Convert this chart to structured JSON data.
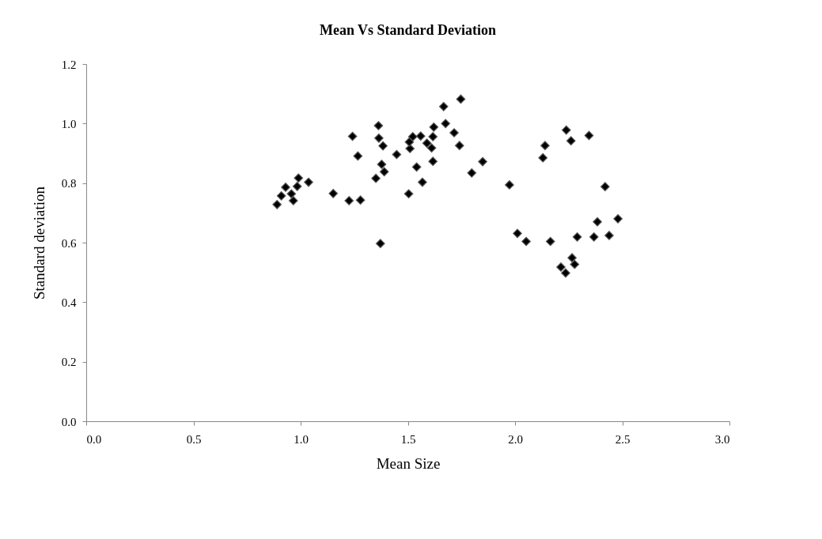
{
  "chart_data": {
    "type": "scatter",
    "title": "Mean Vs Standard Deviation",
    "xlabel": "Mean Size",
    "ylabel": "Standard deviation",
    "x": [
      0.89,
      0.91,
      0.93,
      0.957,
      0.966,
      0.984,
      0.99,
      1.037,
      1.152,
      1.226,
      1.279,
      1.242,
      1.267,
      1.363,
      1.365,
      1.384,
      1.378,
      1.39,
      1.351,
      1.372,
      1.448,
      1.504,
      1.541,
      1.568,
      1.51,
      1.507,
      1.523,
      1.56,
      1.589,
      1.611,
      1.617,
      1.621,
      1.617,
      1.676,
      1.716,
      1.741,
      1.667,
      1.747,
      1.849,
      1.798,
      1.974,
      2.011,
      2.052,
      2.165,
      2.13,
      2.14,
      2.239,
      2.261,
      2.345,
      2.42,
      2.29,
      2.368,
      2.439,
      2.384,
      2.48,
      2.266,
      2.278,
      2.214,
      2.236
    ],
    "series": [
      {
        "color": "#000000",
        "values": [
          0.728,
          0.757,
          0.786,
          0.764,
          0.741,
          0.789,
          0.817,
          0.803,
          0.765,
          0.741,
          0.743,
          0.957,
          0.891,
          0.993,
          0.951,
          0.925,
          0.863,
          0.838,
          0.816,
          0.597,
          0.896,
          0.764,
          0.854,
          0.803,
          0.916,
          0.938,
          0.956,
          0.958,
          0.934,
          0.918,
          0.956,
          0.988,
          0.873,
          1.0,
          0.969,
          0.926,
          1.057,
          1.082,
          0.872,
          0.834,
          0.794,
          0.631,
          0.604,
          0.604,
          0.885,
          0.926,
          0.978,
          0.942,
          0.96,
          0.788,
          0.619,
          0.619,
          0.624,
          0.67,
          0.68,
          0.549,
          0.527,
          0.518,
          0.498
        ]
      }
    ],
    "xlim": [
      0,
      3
    ],
    "xticks": [
      {
        "value": 0,
        "label": "0.0"
      },
      {
        "value": 0.5,
        "label": "0.5"
      },
      {
        "value": 1,
        "label": "1.0"
      },
      {
        "value": 1.5,
        "label": "1.5"
      },
      {
        "value": 2,
        "label": "2.0"
      },
      {
        "value": 2.5,
        "label": "2.5"
      },
      {
        "value": 3,
        "label": "3.0"
      }
    ],
    "ylim": [
      0,
      1.2
    ],
    "yticks": [
      {
        "value": 0,
        "label": "0.0"
      },
      {
        "value": 0.2,
        "label": "0.2"
      },
      {
        "value": 0.4,
        "label": "0.4"
      },
      {
        "value": 0.6,
        "label": "0.6"
      },
      {
        "value": 0.8,
        "label": "0.8"
      },
      {
        "value": 1,
        "label": "1.0"
      },
      {
        "value": 1.2,
        "label": "1.2"
      }
    ],
    "marker": "diamond",
    "grid": false,
    "legend": false
  }
}
